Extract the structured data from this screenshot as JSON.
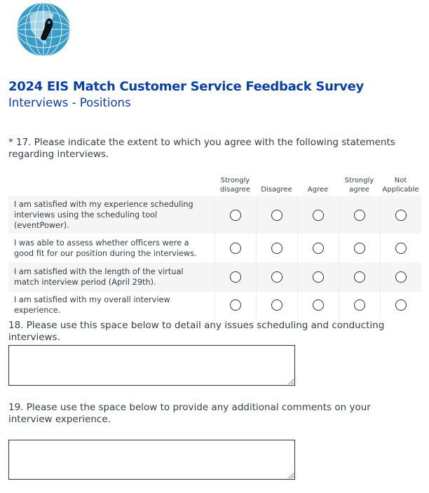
{
  "header": {
    "title": "2024 EIS Match Customer Service Feedback Survey",
    "subtitle": "Interviews - Positions",
    "logo": "globe-with-footprint-logo"
  },
  "q17": {
    "text": "* 17. Please indicate the extent to which you agree with the following statements regarding interviews.",
    "columns": [
      "Strongly disagree",
      "Disagree",
      "Agree",
      "Strongly agree",
      "Not Applicable"
    ],
    "rows": [
      "I am satisfied with my experience scheduling interviews using the scheduling tool (eventPower).",
      "I was able to assess whether officers were a good fit for our position during the interviews.",
      "I am satisfied with the length of the virtual match interview period (April 29th).",
      "I am satisfied with my overall interview experience."
    ]
  },
  "q18": {
    "text": "18. Please use this space below to detail any issues scheduling and conducting interviews.",
    "value": ""
  },
  "q19": {
    "text": "19. Please use the space below to provide any additional comments on your interview experience.",
    "value": ""
  }
}
